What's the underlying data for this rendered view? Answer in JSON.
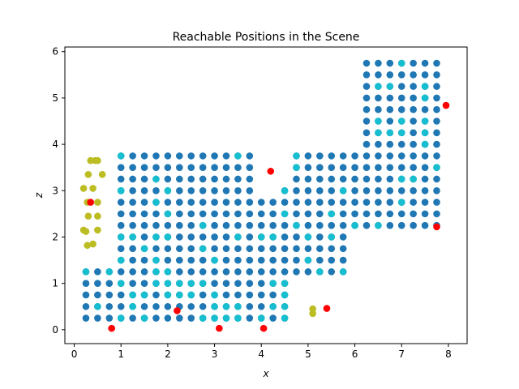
{
  "chart_data": {
    "type": "scatter",
    "title": "Reachable Positions in the Scene",
    "xlabel": "x",
    "ylabel": "z",
    "xlim": [
      -0.2,
      8.4
    ],
    "ylim": [
      -0.3,
      6.1
    ],
    "xticks": [
      0,
      1,
      2,
      3,
      4,
      5,
      6,
      7,
      8
    ],
    "yticks": [
      0,
      1,
      2,
      3,
      4,
      5,
      6
    ],
    "grid": false,
    "legend": "none",
    "colors": {
      "reachable": "#1f77b4",
      "highlighted": "#17becf",
      "olive": "#bcbd22",
      "red": "#ff0000"
    },
    "series": [
      {
        "color_key": "reachable",
        "regions": [
          {
            "x": [
              0.25,
              1.25
            ],
            "z": [
              0.25,
              1.25
            ]
          },
          {
            "x": [
              1.0,
              3.75
            ],
            "z": [
              0.25,
              3.75
            ]
          },
          {
            "x": [
              4.0,
              4.5
            ],
            "z": [
              0.25,
              2.75
            ]
          },
          {
            "x": [
              3.75,
              4.0
            ],
            "z": [
              0.25,
              2.75
            ]
          },
          {
            "x": [
              4.75,
              5.75
            ],
            "z": [
              1.25,
              3.75
            ]
          },
          {
            "x": [
              4.5,
              4.75
            ],
            "z": [
              1.25,
              3.0
            ]
          },
          {
            "x": [
              6.0,
              7.75
            ],
            "z": [
              2.25,
              3.75
            ]
          },
          {
            "x": [
              6.25,
              7.75
            ],
            "z": [
              3.75,
              5.75
            ]
          }
        ]
      },
      {
        "color_key": "highlighted",
        "x": [
          0.25,
          0.5,
          0.75,
          1.0,
          1.25,
          1.25,
          1.0,
          1.5,
          1.75,
          2.0,
          1.0,
          1.25,
          1.5,
          1.75,
          2.0,
          1.0,
          1.75,
          2.0,
          2.25,
          2.5,
          2.75,
          3.0,
          3.25,
          3.5,
          2.5,
          3.0,
          3.5,
          4.0,
          4.25,
          4.5,
          4.5,
          4.5,
          4.5,
          4.25,
          3.25,
          3.5,
          3.0,
          2.75,
          1.0,
          1.0,
          1.75,
          2.0,
          2.75,
          3.5,
          3.0,
          2.0,
          1.75,
          1.5,
          1.25,
          4.25,
          4.5,
          4.0,
          4.75,
          5.0,
          5.25,
          5.5,
          5.75,
          5.75,
          5.5,
          5.0,
          4.75,
          4.75,
          6.0,
          6.5,
          6.5,
          6.75,
          7.0,
          7.0,
          7.25,
          7.5,
          7.5,
          7.5,
          7.75,
          7.0,
          6.75,
          6.5,
          7.0,
          7.5,
          6.5,
          7.0,
          7.5,
          1.0,
          1.75,
          2.0,
          2.75,
          3.5,
          4.5,
          2.25,
          1.5
        ],
        "z": [
          1.25,
          0.5,
          1.25,
          1.0,
          0.75,
          0.5,
          0.25,
          0.75,
          1.0,
          1.0,
          2.0,
          2.0,
          1.75,
          2.0,
          2.0,
          3.0,
          3.25,
          3.0,
          1.0,
          1.0,
          1.0,
          0.75,
          0.5,
          0.5,
          0.75,
          0.25,
          0.25,
          0.25,
          0.5,
          0.75,
          1.0,
          0.5,
          0.25,
          1.0,
          0.25,
          0.25,
          0.5,
          0.25,
          3.75,
          3.0,
          2.75,
          2.5,
          2.25,
          2.0,
          1.5,
          1.25,
          1.5,
          0.25,
          0.5,
          2.0,
          2.5,
          2.0,
          3.75,
          2.0,
          1.25,
          2.5,
          1.25,
          3.0,
          2.0,
          1.5,
          2.25,
          3.5,
          2.25,
          2.25,
          4.25,
          4.25,
          4.25,
          3.25,
          3.25,
          4.25,
          4.0,
          5.0,
          3.5,
          5.75,
          5.25,
          5.25,
          2.75,
          5.25,
          4.5,
          4.5,
          4.5,
          1.5,
          1.25,
          0.75,
          1.75,
          3.75,
          3.0,
          0.75,
          0.25
        ]
      },
      {
        "color_key": "olive",
        "x": [
          0.35,
          0.45,
          0.5,
          0.3,
          0.6,
          0.2,
          0.4,
          0.28,
          0.5,
          0.3,
          0.5,
          0.2,
          0.25,
          0.5,
          0.4,
          0.28,
          5.1,
          5.1
        ],
        "z": [
          3.65,
          3.65,
          3.65,
          3.35,
          3.35,
          3.05,
          3.05,
          2.75,
          2.75,
          2.45,
          2.45,
          2.15,
          2.12,
          2.15,
          1.85,
          1.82,
          0.45,
          0.35
        ]
      },
      {
        "color_key": "red",
        "x": [
          0.35,
          0.8,
          2.2,
          3.1,
          4.05,
          4.2,
          5.4,
          7.75,
          7.95
        ],
        "z": [
          2.75,
          0.03,
          0.41,
          0.03,
          0.03,
          3.42,
          0.46,
          2.22,
          4.84
        ]
      }
    ]
  }
}
